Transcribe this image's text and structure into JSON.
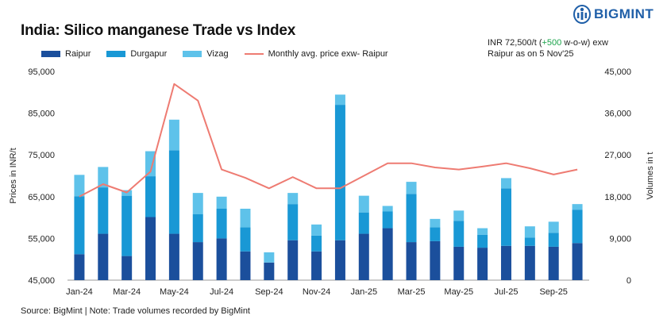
{
  "header": {
    "title": "India: Silico manganese Trade vs Index",
    "brand": "BIGMINT",
    "note_line1_pre": "INR 72,500/t (",
    "note_change": "+500",
    "note_line1_post": " w-o-w) exw",
    "note_line2": "Raipur as on 5 Nov'25"
  },
  "footer": {
    "source": "Source: BigMint | Note: Trade volumes recorded by BigMint"
  },
  "colors": {
    "raipur": "#1b4f9c",
    "durgapur": "#1998d5",
    "vizag": "#5ec2ea",
    "price": "#ee7b72",
    "brand": "#1f5fa8"
  },
  "chart_data": {
    "type": "bar",
    "title": "India: Silico manganese Trade vs Index",
    "ylabel": "Prices in INR/t",
    "y2label": "Volumes in t",
    "ylim": [
      45000,
      95000
    ],
    "y2lim": [
      0,
      45000
    ],
    "yticks": [
      "45,000",
      "55,000",
      "65,000",
      "75,000",
      "85,000",
      "95,000"
    ],
    "y2ticks": [
      "0",
      "9,000",
      "18,000",
      "27,000",
      "36,000",
      "45,000"
    ],
    "xtick_labels": [
      "Jan-24",
      "Mar-24",
      "May-24",
      "Jul-24",
      "Sep-24",
      "Nov-24",
      "Jan-25",
      "Mar-25",
      "May-25",
      "Jul-25",
      "Sep-25"
    ],
    "categories": [
      "Jan-24",
      "Feb-24",
      "Mar-24",
      "Apr-24",
      "May-24",
      "Jun-24",
      "Jul-24",
      "Aug-24",
      "Sep-24",
      "Oct-24",
      "Nov-24",
      "Dec-24",
      "Jan-25",
      "Feb-25",
      "Mar-25",
      "Apr-25",
      "May-25",
      "Jun-25",
      "Jul-25",
      "Aug-25",
      "Sep-25",
      "Oct-25"
    ],
    "series": [
      {
        "name": "Raipur",
        "kind": "bar",
        "axis": "right",
        "values": [
          5600,
          10000,
          5200,
          13600,
          10000,
          8200,
          9000,
          6200,
          3800,
          8600,
          6200,
          8600,
          10000,
          11200,
          8200,
          8400,
          7200,
          7000,
          7400,
          7400,
          7200,
          8000
        ]
      },
      {
        "name": "Durgapur",
        "kind": "bar",
        "axis": "right",
        "values": [
          12500,
          10000,
          13000,
          8800,
          18000,
          6000,
          6400,
          5200,
          0,
          7800,
          3400,
          29200,
          4600,
          3600,
          10400,
          3000,
          5600,
          2800,
          12400,
          1800,
          3000,
          7200
        ]
      },
      {
        "name": "Vizag",
        "kind": "bar",
        "axis": "right",
        "values": [
          4600,
          4400,
          1200,
          5400,
          6600,
          4600,
          2600,
          4000,
          2200,
          2400,
          2400,
          2200,
          3600,
          1200,
          2600,
          1800,
          2200,
          1400,
          2200,
          2400,
          2400,
          1200
        ]
      },
      {
        "name": "Monthly avg. price exw- Raipur",
        "kind": "line",
        "axis": "left",
        "values": [
          65000,
          68000,
          66000,
          71000,
          92000,
          88000,
          71500,
          69500,
          67000,
          69700,
          67000,
          67000,
          70000,
          73000,
          73000,
          72000,
          71500,
          72200,
          73000,
          71800,
          70300,
          71500
        ]
      }
    ],
    "legend_position": "top-left",
    "grid": false
  }
}
